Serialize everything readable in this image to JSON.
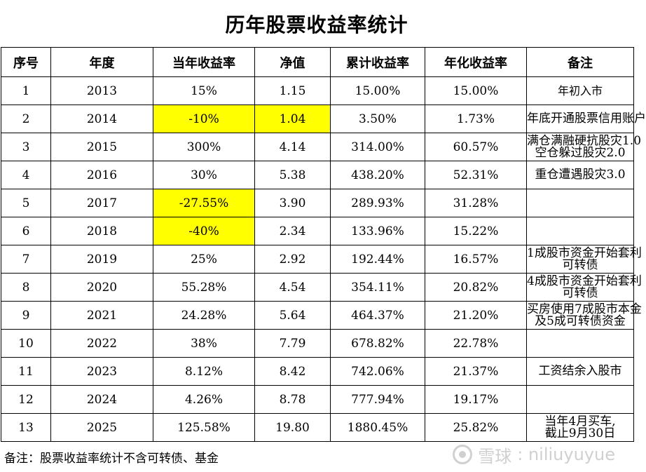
{
  "title": "历年股票收益率统计",
  "headers": [
    "序号",
    "年度",
    "当年收益率",
    "净值",
    "累计收益率",
    "年化收益率",
    "备注"
  ],
  "highlight_color": "#ffff00",
  "rows": [
    {
      "no": "1",
      "year": "2013",
      "ret": "15%",
      "nav": "1.15",
      "cum": "15.00%",
      "ann": "15.00%",
      "note": "年初入市"
    },
    {
      "no": "2",
      "year": "2014",
      "ret": "-10%",
      "nav": "1.04",
      "cum": "3.50%",
      "ann": "1.73%",
      "note": "年底开通股票信用账户"
    },
    {
      "no": "3",
      "year": "2015",
      "ret": "300%",
      "nav": "4.14",
      "cum": "314.00%",
      "ann": "60.57%",
      "note": "满仓满融硬抗股灾1.0",
      "note2": "空仓躲过股灾2.0"
    },
    {
      "no": "4",
      "year": "2016",
      "ret": "30%",
      "nav": "5.38",
      "cum": "438.20%",
      "ann": "52.31%",
      "note": "重仓遭遇股灾3.0"
    },
    {
      "no": "5",
      "year": "2017",
      "ret": "-27.55%",
      "nav": "3.90",
      "cum": "289.93%",
      "ann": "31.28%",
      "note": ""
    },
    {
      "no": "6",
      "year": "2018",
      "ret": "-40%",
      "nav": "2.34",
      "cum": "133.96%",
      "ann": "15.22%",
      "note": ""
    },
    {
      "no": "7",
      "year": "2019",
      "ret": "25%",
      "nav": "2.92",
      "cum": "192.44%",
      "ann": "16.57%",
      "note": "1成股市资金开始套利",
      "note2": "可转债"
    },
    {
      "no": "8",
      "year": "2020",
      "ret": "55.28%",
      "nav": "4.54",
      "cum": "354.11%",
      "ann": "20.82%",
      "note": "4成股市资金开始套利",
      "note2": "可转债"
    },
    {
      "no": "9",
      "year": "2021",
      "ret": "24.28%",
      "nav": "5.64",
      "cum": "464.37%",
      "ann": "21.20%",
      "note": "买房使用7成股市本金",
      "note2": "及5成可转债资金"
    },
    {
      "no": "10",
      "year": "2022",
      "ret": "38%",
      "nav": "7.79",
      "cum": "678.82%",
      "ann": "22.78%",
      "note": ""
    },
    {
      "no": "11",
      "year": "2023",
      "ret": "8.12%",
      "nav": "8.42",
      "cum": "742.06%",
      "ann": "21.37%",
      "note": "工资结余入股市"
    },
    {
      "no": "12",
      "year": "2024",
      "ret": "4.26%",
      "nav": "8.78",
      "cum": "777.94%",
      "ann": "19.17%",
      "note": ""
    },
    {
      "no": "13",
      "year": "2025",
      "ret": "125.58%",
      "nav": "19.80",
      "cum": "1880.45%",
      "ann": "25.82%",
      "note": "当年4月买车,",
      "note2": "截止9月30日"
    }
  ],
  "footnote": "备注：股票收益率统计不含可转债、基金",
  "watermark": {
    "brand": "雪球",
    "user": "niliuyuyue",
    "icon": "snowball-logo-icon"
  }
}
